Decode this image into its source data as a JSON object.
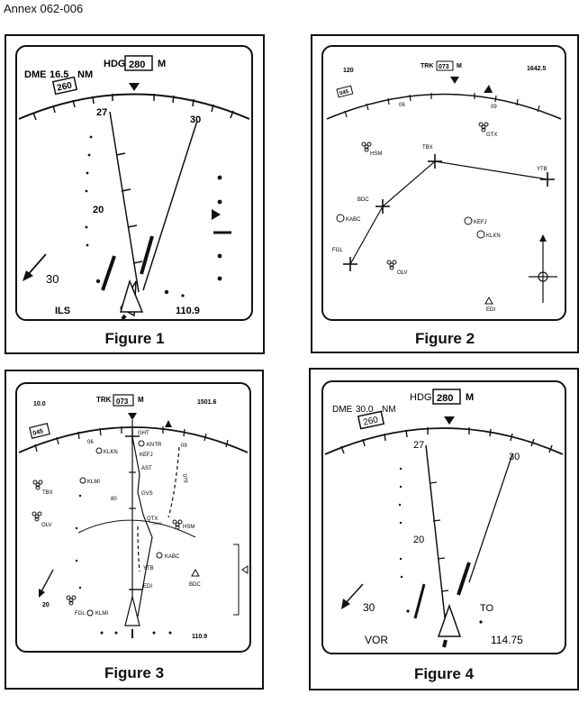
{
  "annex_label": "Annex 062-006",
  "figure1": {
    "caption": "Figure 1",
    "dme_label": "DME",
    "dme_value": "16.5",
    "dme_unit": "NM",
    "hdg_label": "HDG",
    "hdg_value": "280",
    "hdg_ref": "M",
    "sel_course": "260",
    "scale_27": "27",
    "scale_30": "30",
    "scale_20": "20",
    "wind": "30",
    "mode": "ILS",
    "freq": "110.9"
  },
  "figure2": {
    "caption": "Figure 2",
    "range": "120",
    "trk_label": "TRK",
    "trk_value": "073",
    "trk_ref": "M",
    "time": "1642.5",
    "sel_course": "045",
    "scale_06": "06",
    "scale_09": "09",
    "waypoints": [
      "GTX",
      "HSM",
      "TBX",
      "YTB",
      "BDC",
      "KABC",
      "KEFJ",
      "KLKN",
      "FGL",
      "OLV",
      "EDI"
    ]
  },
  "figure3": {
    "caption": "Figure 3",
    "range": "10.0",
    "trk_label": "TRK",
    "trk_value": "073",
    "trk_ref": "M",
    "time": "1501.6",
    "sel_course": "045",
    "scale_06": "06",
    "scale_09": "09",
    "track_line_label": "079",
    "range_ring_label": "80",
    "alt_label": "11000",
    "wind": "20",
    "freq": "110.9",
    "waypoints": [
      "GHT",
      "KNTR",
      "KLKN",
      "KEFJ",
      "AST",
      "KLMI",
      "TBX",
      "GVS",
      "QTX",
      "HSM",
      "OLV",
      "KABC",
      "YTB",
      "BDC",
      "EDI",
      "FGL",
      "KLMI"
    ]
  },
  "figure4": {
    "caption": "Figure 4",
    "dme_label": "DME",
    "dme_value": "30.0",
    "dme_unit": "NM",
    "hdg_label": "HDG",
    "hdg_value": "280",
    "hdg_ref": "M",
    "sel_course": "260",
    "scale_27": "27",
    "scale_30": "30",
    "scale_20": "20",
    "wind": "30",
    "to_from": "TO",
    "mode": "VOR",
    "freq": "114.75"
  }
}
